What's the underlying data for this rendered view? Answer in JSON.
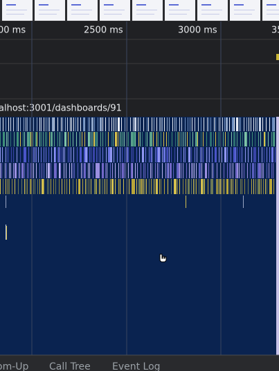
{
  "ruler": {
    "labels": [
      "00 ms",
      "2500 ms",
      "3000 ms",
      "35"
    ]
  },
  "network": {
    "url": "alhost:3001/dashboards/91"
  },
  "tabs": [
    "om-Up",
    "Call Tree",
    "Event Log"
  ]
}
